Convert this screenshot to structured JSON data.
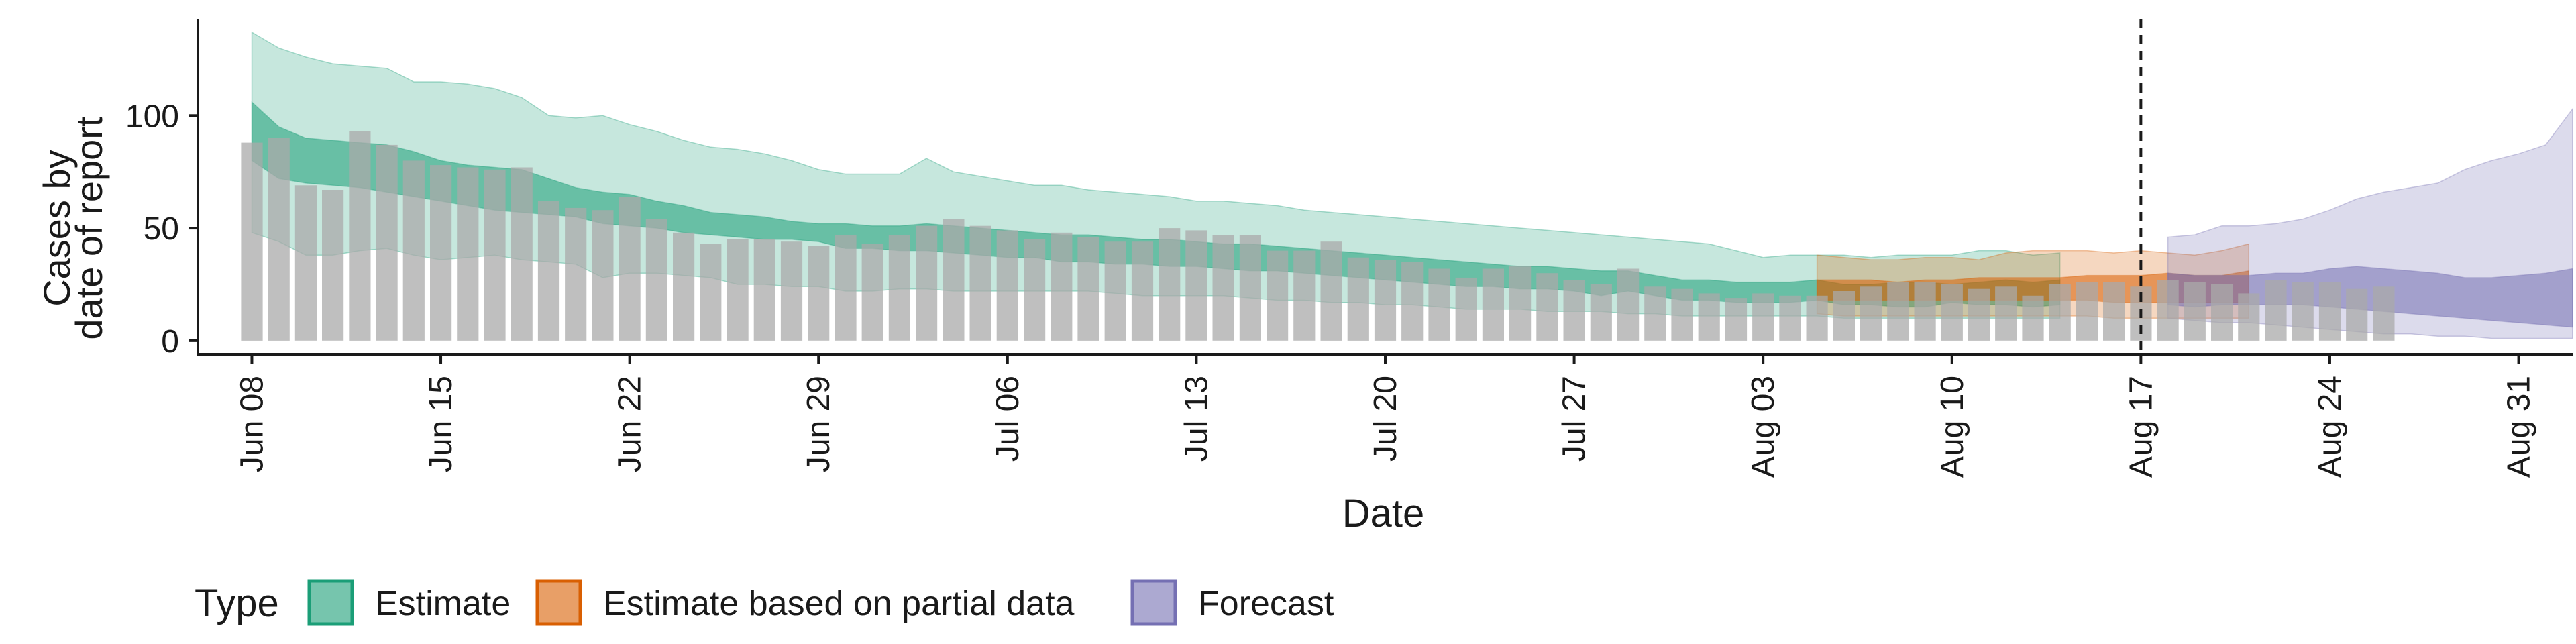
{
  "chart_data": {
    "type": "area",
    "title": "",
    "xlabel": "Date",
    "ylabel": [
      "Cases by",
      "date of report"
    ],
    "x_ticks": [
      "Jun 08",
      "Jun 15",
      "Jun 22",
      "Jun 29",
      "Jul 06",
      "Jul 13",
      "Jul 20",
      "Jul 27",
      "Aug 03",
      "Aug 10",
      "Aug 17",
      "Aug 24",
      "Aug 31"
    ],
    "y_ticks": [
      0,
      50,
      100
    ],
    "ylim": [
      -6,
      143
    ],
    "x_range": [
      "2020-06-06",
      "2020-09-02"
    ],
    "date_start": "2020-06-08",
    "vline_date": "2020-08-17",
    "grid": false,
    "legend": {
      "title": "Type",
      "position": "bottom-left",
      "items": [
        {
          "label": "Estimate",
          "color": "#1b9e77"
        },
        {
          "label": "Estimate based on partial data",
          "color": "#d95f02"
        },
        {
          "label": "Forecast",
          "color": "#7570b3"
        }
      ]
    },
    "bar_color": "#a9a9a9",
    "reported_cases": [
      88,
      90,
      69,
      67,
      93,
      87,
      80,
      78,
      77,
      76,
      77,
      62,
      59,
      58,
      64,
      54,
      48,
      43,
      45,
      45,
      44,
      42,
      47,
      43,
      47,
      51,
      54,
      51,
      49,
      45,
      48,
      46,
      44,
      44,
      50,
      49,
      47,
      47,
      40,
      40,
      44,
      37,
      36,
      35,
      32,
      28,
      32,
      33,
      30,
      27,
      25,
      32,
      24,
      23,
      21,
      19,
      21,
      20,
      20,
      22,
      24,
      26,
      26,
      25,
      23,
      24,
      20,
      25,
      26,
      26,
      24,
      27,
      26,
      25,
      21,
      27,
      26,
      26,
      23,
      24
    ],
    "series": [
      {
        "name": "Estimate",
        "start": "2020-06-08",
        "upper90": [
          137,
          130,
          126,
          123,
          122,
          121,
          115,
          115,
          114,
          112,
          108,
          100,
          99,
          100,
          96,
          93,
          89,
          86,
          85,
          83,
          80,
          76,
          74,
          74,
          74,
          81,
          75,
          73,
          71,
          69,
          69,
          67,
          66,
          65,
          64,
          62,
          62,
          61,
          60,
          58,
          57,
          56,
          55,
          54,
          53,
          52,
          51,
          50,
          49,
          48,
          47,
          46,
          45,
          44,
          43,
          40,
          37,
          38,
          38,
          38,
          37,
          38,
          38,
          38,
          40,
          40,
          38,
          39
        ],
        "upper50": [
          106,
          95,
          90,
          89,
          88,
          87,
          84,
          80,
          78,
          77,
          76,
          72,
          68,
          66,
          65,
          62,
          60,
          57,
          56,
          55,
          53,
          52,
          52,
          51,
          51,
          52,
          51,
          50,
          49,
          48,
          47,
          47,
          46,
          45,
          45,
          44,
          43,
          43,
          42,
          41,
          40,
          39,
          38,
          37,
          36,
          35,
          34,
          33,
          33,
          32,
          31,
          31,
          29,
          27,
          27,
          26,
          26,
          26,
          27,
          25,
          25,
          26,
          26,
          25,
          26,
          27,
          26,
          27
        ],
        "lower50": [
          80,
          72,
          70,
          69,
          68,
          66,
          64,
          62,
          60,
          58,
          57,
          56,
          55,
          52,
          51,
          50,
          48,
          47,
          46,
          45,
          45,
          44,
          41,
          41,
          40,
          40,
          39,
          38,
          37,
          37,
          35,
          35,
          34,
          34,
          33,
          33,
          32,
          31,
          31,
          30,
          29,
          28,
          27,
          26,
          25,
          24,
          24,
          23,
          23,
          22,
          20,
          22,
          20,
          18,
          18,
          17,
          17,
          17,
          18,
          16,
          16,
          15,
          15,
          17,
          16,
          16,
          15,
          16
        ],
        "lower90": [
          48,
          44,
          38,
          38,
          40,
          41,
          38,
          36,
          37,
          38,
          36,
          35,
          34,
          28,
          30,
          30,
          29,
          28,
          25,
          25,
          24,
          24,
          22,
          22,
          23,
          23,
          22,
          22,
          22,
          22,
          22,
          22,
          21,
          20,
          20,
          20,
          20,
          19,
          18,
          18,
          17,
          17,
          16,
          16,
          15,
          14,
          14,
          14,
          13,
          13,
          13,
          12,
          12,
          11,
          11,
          11,
          11,
          11,
          11,
          10,
          10,
          10,
          10,
          10,
          10,
          10,
          10,
          10
        ]
      },
      {
        "name": "Estimate based on partial data",
        "start": "2020-08-05",
        "upper90": [
          38,
          37,
          36,
          36,
          37,
          37,
          36,
          39,
          40,
          40,
          40,
          39,
          40,
          39,
          38,
          40,
          43
        ],
        "upper50": [
          27,
          27,
          27,
          26,
          27,
          27,
          28,
          28,
          28,
          28,
          29,
          29,
          29,
          30,
          29,
          29,
          31
        ],
        "lower50": [
          18,
          18,
          18,
          18,
          18,
          18,
          18,
          18,
          18,
          18,
          18,
          17,
          17,
          17,
          17,
          17,
          17
        ],
        "lower90": [
          12,
          11,
          11,
          11,
          11,
          11,
          11,
          11,
          11,
          11,
          11,
          10,
          10,
          10,
          10,
          10,
          10
        ]
      },
      {
        "name": "Forecast",
        "start": "2020-08-18",
        "upper90": [
          46,
          47,
          51,
          51,
          52,
          54,
          58,
          63,
          66,
          68,
          70,
          76,
          80,
          83,
          87,
          103
        ],
        "upper50": [
          30,
          29,
          29,
          29,
          30,
          30,
          32,
          33,
          32,
          31,
          30,
          28,
          28,
          29,
          30,
          32
        ],
        "lower50": [
          16,
          15,
          16,
          16,
          16,
          16,
          15,
          14,
          13,
          12,
          11,
          10,
          9,
          8,
          7,
          6
        ],
        "lower90": [
          10,
          9,
          8,
          8,
          7,
          6,
          5,
          4,
          3,
          3,
          2,
          2,
          1,
          1,
          1,
          1
        ]
      }
    ]
  }
}
